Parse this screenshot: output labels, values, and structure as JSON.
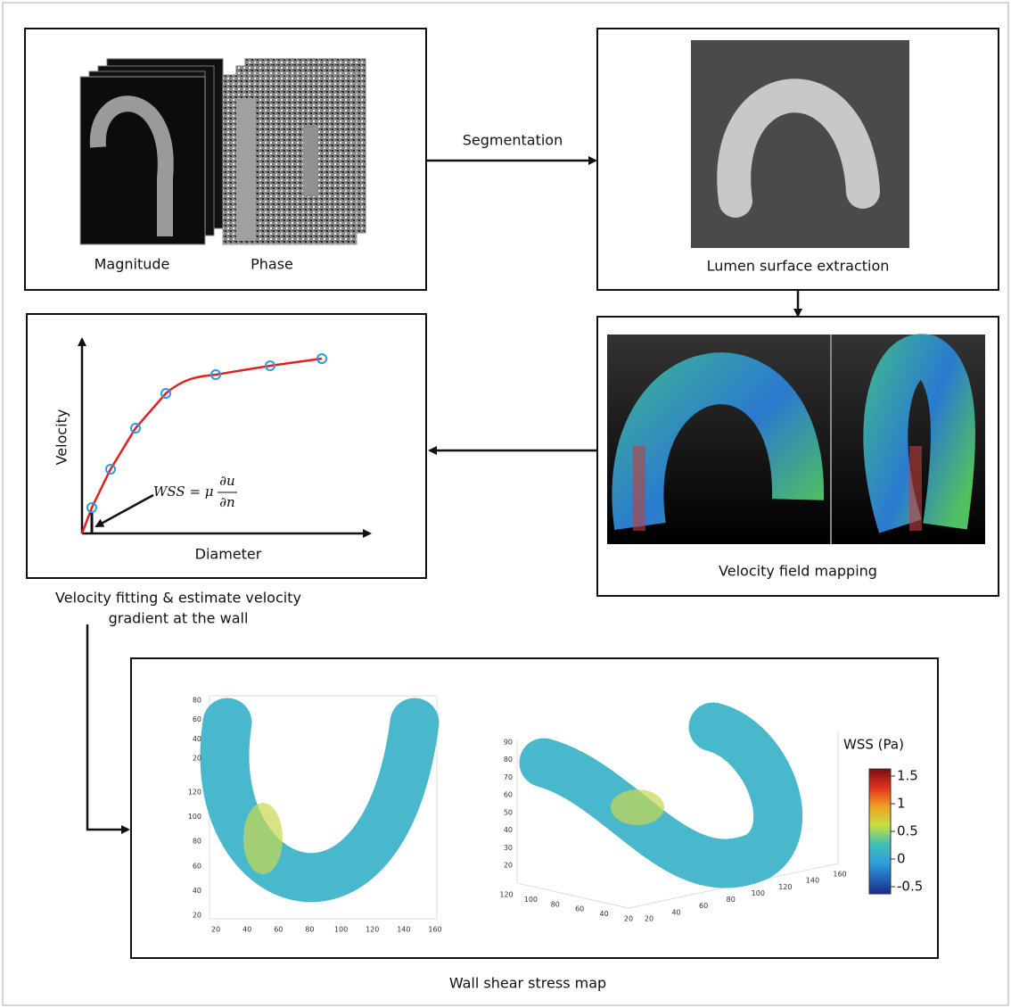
{
  "acquisition": {
    "magnitude_label": "Magnitude",
    "phase_label": "Phase"
  },
  "segmentation_label": "Segmentation",
  "lumen_caption": "Lumen surface extraction",
  "velocity_field_caption": "Velocity field mapping",
  "fitting": {
    "y_label": "Velocity",
    "x_label": "Diameter",
    "formula_lhs": "WSS = μ",
    "formula_num": "∂u",
    "formula_den": "∂n",
    "caption_lines": [
      "Velocity fitting & estimate velocity",
      "gradient at the wall"
    ]
  },
  "wss_map": {
    "caption": "Wall shear stress map",
    "colorbar_title": "WSS (Pa)",
    "colorbar_ticks": [
      1.5,
      1,
      0.5,
      0,
      -0.5
    ],
    "plot1": {
      "z_ticks": [
        80,
        60,
        40,
        20
      ],
      "y_ticks": [
        120,
        100,
        80,
        60,
        40,
        20
      ],
      "x_ticks": [
        20,
        40,
        60,
        80,
        100,
        120,
        140,
        160
      ]
    },
    "plot2": {
      "z_ticks": [
        90,
        80,
        70,
        60,
        50,
        40,
        30,
        20
      ],
      "y_ticks": [
        120,
        100,
        80,
        60,
        40,
        20
      ],
      "x_ticks": [
        20,
        40,
        60,
        80,
        100,
        120,
        140,
        160
      ]
    }
  }
}
